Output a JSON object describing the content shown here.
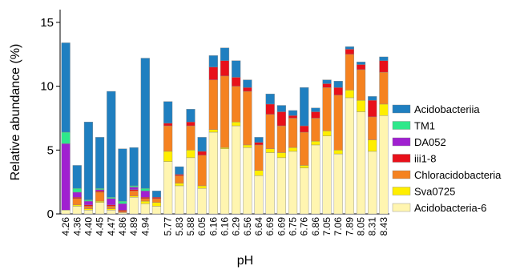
{
  "chart_data": {
    "type": "stacked_bar",
    "xlabel": "pH",
    "ylabel": "Relative abundance (%)",
    "categories": [
      "4.26",
      "4.36",
      "4.40",
      "4.45",
      "4.47",
      "4.86",
      "4.89",
      "4.94",
      null,
      "5.77",
      "5.83",
      "5.88",
      "6.05",
      "6.16",
      "6.16",
      "6.29",
      "6.56",
      "6.64",
      "6.69",
      "6.69",
      "6.75",
      "6.76",
      "6.86",
      "7.05",
      "7.06",
      "7.89",
      "8.05",
      "8.31",
      "8.43"
    ],
    "ylim": [
      0,
      16
    ],
    "yticks": [
      0,
      5,
      10,
      15
    ],
    "grid": false,
    "legend": "right",
    "series": [
      {
        "name": "Acidobacteriia",
        "color": "#1f7fc0",
        "values": [
          7.0,
          1.8,
          6.1,
          4.0,
          8.3,
          4.1,
          3.0,
          10.2,
          0.5,
          1.7,
          0.6,
          1.0,
          1.1,
          0.9,
          1.0,
          1.3,
          0.6,
          0.4,
          0.8,
          0.5,
          0.4,
          3.0,
          0.3,
          0.3,
          0.5,
          0.2,
          0.2,
          0.3,
          0.3
        ]
      },
      {
        "name": "TM1",
        "color": "#2ee88a",
        "values": [
          0.9,
          0.3,
          0.1,
          0.1,
          0.1,
          0.2,
          0.1,
          0.2,
          0,
          0,
          0,
          0,
          0,
          0,
          0,
          0,
          0,
          0,
          0,
          0,
          0,
          0,
          0,
          0,
          0,
          0,
          0,
          0,
          0
        ]
      },
      {
        "name": "DA052",
        "color": "#a020d0",
        "values": [
          5.2,
          0.4,
          0.3,
          0.1,
          0.5,
          0.5,
          0.2,
          0.5,
          0,
          0,
          0,
          0,
          0,
          0,
          0,
          0,
          0,
          0,
          0,
          0,
          0,
          0,
          0,
          0,
          0,
          0,
          0,
          0,
          0
        ]
      },
      {
        "name": "iii1-8",
        "color": "#e8101a",
        "values": [
          0,
          0.1,
          0.1,
          0.1,
          0.1,
          0.1,
          0.1,
          0.1,
          0.1,
          0.2,
          0.1,
          0.3,
          0.3,
          1.0,
          1.2,
          0.7,
          0.3,
          0.2,
          0.8,
          1.1,
          0.2,
          0.5,
          0.5,
          0.3,
          0.6,
          0.4,
          0.4,
          1.3,
          0.9
        ]
      },
      {
        "name": "Chloracidobacteria",
        "color": "#f58220",
        "values": [
          0,
          0.5,
          0.2,
          0.7,
          0.2,
          0.1,
          0.4,
          0.2,
          0.3,
          2.0,
          0.6,
          1.9,
          2.4,
          3.9,
          5.6,
          2.8,
          4.2,
          2.0,
          2.7,
          2.1,
          2.3,
          2.6,
          1.8,
          3.4,
          4.3,
          2.8,
          2.4,
          1.8,
          2.5
        ]
      },
      {
        "name": "Sva0725",
        "color": "#ffee00",
        "values": [
          0,
          0.1,
          0.1,
          0.1,
          0.1,
          0,
          0.1,
          0.2,
          0.3,
          0.8,
          0.2,
          0.6,
          0.2,
          0.2,
          0.1,
          0.3,
          0.2,
          0.4,
          0.3,
          0.4,
          0.3,
          0.2,
          0.3,
          0.4,
          0.3,
          0.6,
          0.9,
          0.9,
          0.9
        ]
      },
      {
        "name": "Acidobacteria-6",
        "color": "#fff5b0",
        "values": [
          0.3,
          0.6,
          0.3,
          0.9,
          0.3,
          0.1,
          1.3,
          0.8,
          0.6,
          4.1,
          2.2,
          4.4,
          2.0,
          6.4,
          5.1,
          6.9,
          5.2,
          3.0,
          4.8,
          4.4,
          4.9,
          3.6,
          5.4,
          6.1,
          4.7,
          9.1,
          8.0,
          4.9,
          7.7
        ]
      }
    ]
  }
}
